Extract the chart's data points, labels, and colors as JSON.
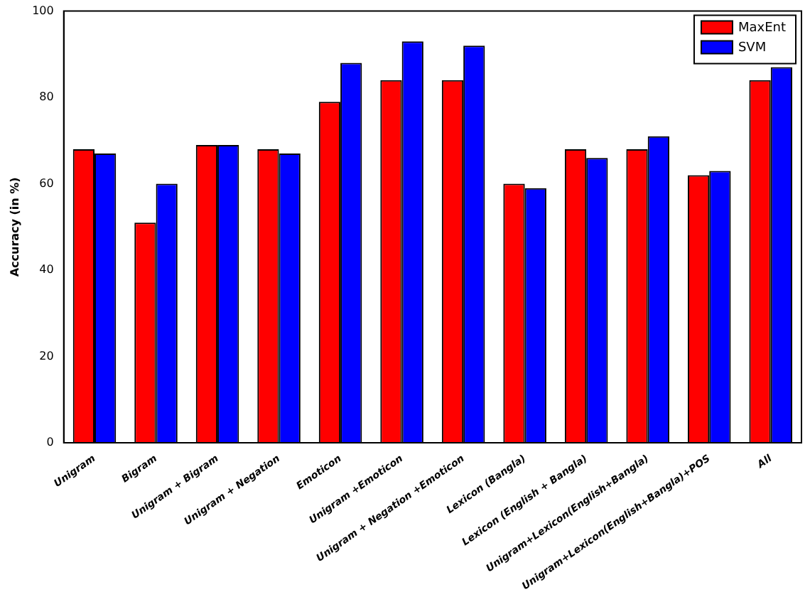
{
  "chart_data": {
    "type": "bar",
    "ylabel": "Accuracy (in %)",
    "categories": [
      "Unigram",
      "Bigram",
      "Unigram + Bigram",
      "Unigram + Negation",
      "Emoticon",
      "Unigram +Emoticon",
      "Unigram + Negation +Emoticon",
      "Lexicon (Bangla)",
      "Lexicon (English + Bangla)",
      "Unigram+Lexicon(English+Bangla)",
      "Unigram+Lexicon(English+Bangla)+POS",
      "All"
    ],
    "series": [
      {
        "name": "MaxEnt",
        "color": "#ff0000",
        "values": [
          68,
          51,
          69,
          68,
          79,
          84,
          84,
          60,
          68,
          68,
          62,
          84
        ]
      },
      {
        "name": "SVM",
        "color": "#0000ff",
        "values": [
          67,
          60,
          69,
          67,
          88,
          93,
          92,
          59,
          66,
          71,
          63,
          87
        ]
      }
    ],
    "ylim": [
      0,
      100
    ],
    "yticks": [
      0,
      20,
      40,
      60,
      80,
      100
    ],
    "grid": false,
    "legend": "top right"
  }
}
